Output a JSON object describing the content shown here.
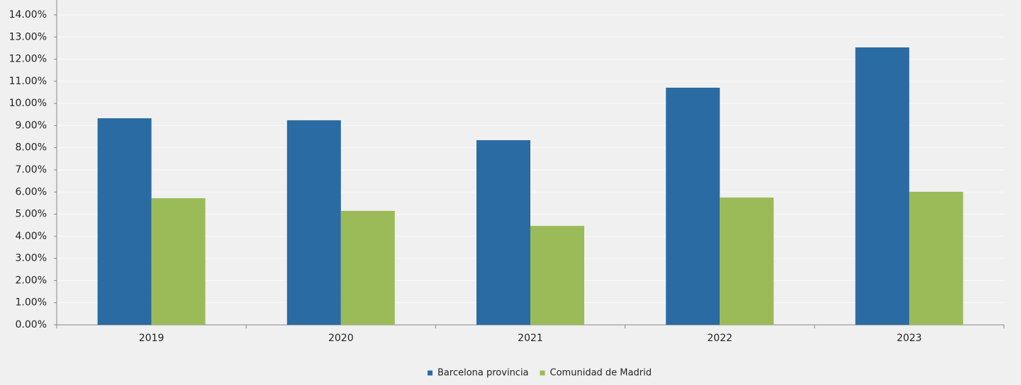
{
  "chart_data": {
    "type": "bar",
    "categories": [
      "2019",
      "2020",
      "2021",
      "2022",
      "2023"
    ],
    "series": [
      {
        "name": "Barcelona provincia",
        "color": "#2a6ba3",
        "values": [
          9.33,
          9.24,
          8.34,
          10.71,
          12.53
        ]
      },
      {
        "name": "Comunidad de Madrid",
        "color": "#9bbb59",
        "values": [
          5.72,
          5.15,
          4.47,
          5.75,
          6.01
        ]
      }
    ],
    "ylim": [
      0,
      14
    ],
    "yticks": [
      {
        "value": 0,
        "label": "0.00%"
      },
      {
        "value": 1,
        "label": "1.00%"
      },
      {
        "value": 2,
        "label": "2.00%"
      },
      {
        "value": 3,
        "label": "3.00%"
      },
      {
        "value": 4,
        "label": "4.00%"
      },
      {
        "value": 5,
        "label": "5.00%"
      },
      {
        "value": 6,
        "label": "6.00%"
      },
      {
        "value": 7,
        "label": "7.00%"
      },
      {
        "value": 8,
        "label": "8.00%"
      },
      {
        "value": 9,
        "label": "9.00%"
      },
      {
        "value": 10,
        "label": "10.00%"
      },
      {
        "value": 11,
        "label": "11.00%"
      },
      {
        "value": 12,
        "label": "12.00%"
      },
      {
        "value": 13,
        "label": "13.00%"
      },
      {
        "value": 14,
        "label": "14.00%"
      }
    ],
    "grid": true,
    "legend": "bottom"
  }
}
